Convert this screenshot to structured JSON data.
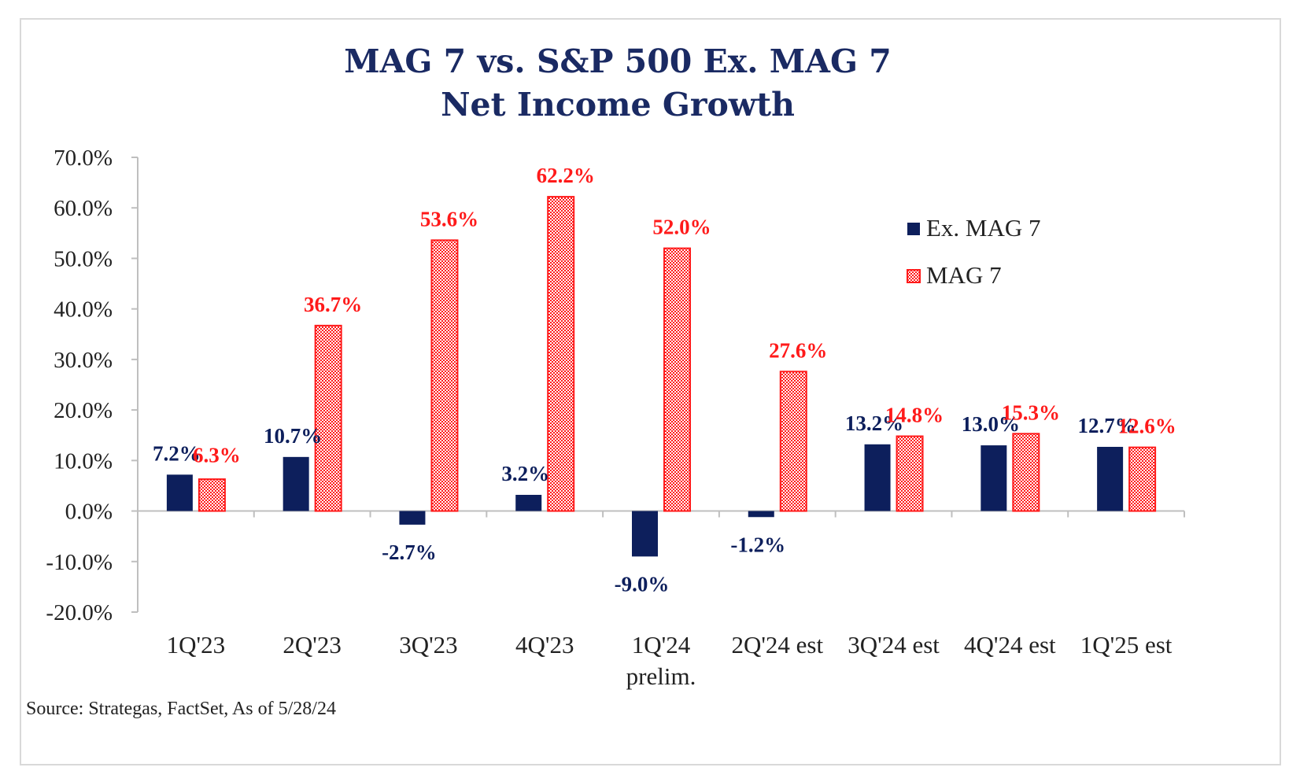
{
  "chart_data": {
    "type": "bar",
    "title_lines": [
      "MAG 7 vs. S&P 500 Ex. MAG 7",
      "Net Income Growth"
    ],
    "categories": [
      "1Q'23",
      "2Q'23",
      "3Q'23",
      "4Q'23",
      "1Q'24\nprelim.",
      "2Q'24 est",
      "3Q'24 est",
      "4Q'24 est",
      "1Q'25 est"
    ],
    "series": [
      {
        "name": "Ex. MAG 7",
        "color": "#0d1f5c",
        "values": [
          7.2,
          10.7,
          -2.7,
          3.2,
          -9.0,
          -1.2,
          13.2,
          13.0,
          12.7
        ],
        "labels": [
          "7.2%",
          "10.7%",
          "-2.7%",
          "3.2%",
          "-9.0%",
          "-1.2%",
          "13.2%",
          "13.0%",
          "12.7%"
        ]
      },
      {
        "name": "MAG 7",
        "color": "#ff1a1a",
        "values": [
          6.3,
          36.7,
          53.6,
          62.2,
          52.0,
          27.6,
          14.8,
          15.3,
          12.6
        ],
        "labels": [
          "6.3%",
          "36.7%",
          "53.6%",
          "62.2%",
          "52.0%",
          "27.6%",
          "14.8%",
          "15.3%",
          "12.6%"
        ]
      }
    ],
    "ylim": [
      -20,
      70
    ],
    "yticks": [
      70,
      60,
      50,
      40,
      30,
      20,
      10,
      0,
      -10,
      -20
    ],
    "ytick_labels": [
      "70.0%",
      "60.0%",
      "50.0%",
      "40.0%",
      "30.0%",
      "20.0%",
      "10.0%",
      "0.0%",
      "-10.0%",
      "-20.0%"
    ],
    "legend_position": "right",
    "source": "Source: Strategas, FactSet, As of 5/28/24"
  }
}
